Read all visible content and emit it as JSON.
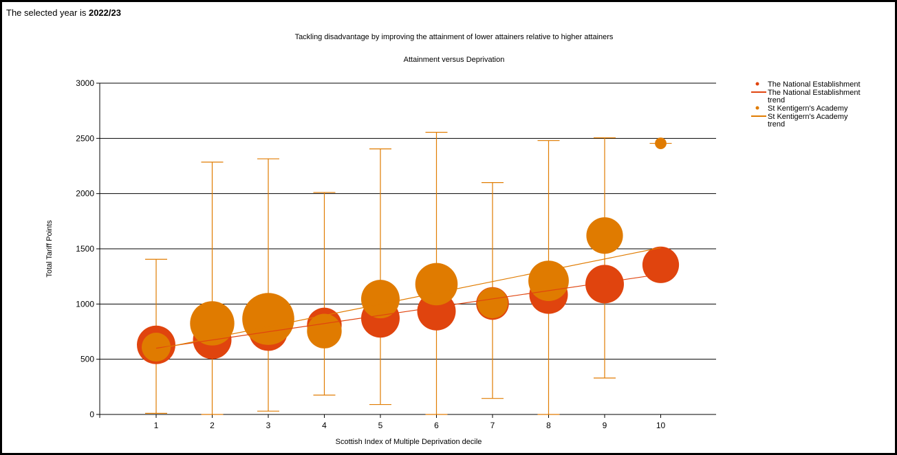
{
  "header": {
    "year_prefix": "The selected year is",
    "year_value": "2022/23"
  },
  "chart_data": {
    "type": "scatter",
    "title": "Tackling disadvantage by improving the attainment of lower attainers relative to higher attainers",
    "subtitle": "Attainment versus Deprivation",
    "xlabel": "Scottish Index of Multiple Deprivation decile",
    "ylabel": "Total Tariff Points",
    "categories": [
      "1",
      "2",
      "3",
      "4",
      "5",
      "6",
      "7",
      "8",
      "9",
      "10"
    ],
    "ylim": [
      0,
      3000
    ],
    "y_ticks": [
      "0",
      "500",
      "1000",
      "1500",
      "2000",
      "2500",
      "3000"
    ],
    "grid": true,
    "legend_position": "right",
    "legend": [
      {
        "label": "The National Establishment",
        "kind": "point",
        "color": "#e0440e"
      },
      {
        "label": "The National Establishment trend",
        "kind": "line",
        "color": "#e0440e"
      },
      {
        "label": "St Kentigern's Academy",
        "kind": "point",
        "color": "#e07b00"
      },
      {
        "label": "St Kentigern's Academy trend",
        "kind": "line",
        "color": "#e07b00"
      }
    ],
    "series": [
      {
        "name": "The National Establishment",
        "color": "#e0440e",
        "x": [
          1,
          2,
          3,
          4,
          5,
          6,
          7,
          8,
          9,
          10
        ],
        "y": [
          630,
          675,
          750,
          810,
          870,
          935,
          1005,
          1085,
          1180,
          1355
        ],
        "bubble_size": [
          1.0,
          1.0,
          1.0,
          0.9,
          1.0,
          1.0,
          0.85,
          1.0,
          1.0,
          0.95
        ]
      },
      {
        "name": "St Kentigern's Academy",
        "color": "#e07b00",
        "x": [
          1,
          2,
          3,
          4,
          5,
          6,
          7,
          8,
          9,
          10
        ],
        "y": [
          610,
          825,
          865,
          755,
          1045,
          1180,
          1010,
          1210,
          1620,
          2455
        ],
        "bubble_size": [
          0.75,
          1.15,
          1.35,
          0.9,
          1.0,
          1.1,
          0.8,
          1.05,
          0.95,
          0.3
        ],
        "error_low": [
          10,
          0,
          30,
          175,
          90,
          0,
          145,
          0,
          330,
          null
        ],
        "error_high": [
          1405,
          2285,
          2315,
          2010,
          2405,
          2555,
          2100,
          2480,
          2505,
          null
        ]
      }
    ],
    "trend_lines": [
      {
        "series": "The National Establishment trend",
        "color": "#e0440e",
        "x": [
          1,
          10
        ],
        "y": [
          600,
          1270
        ]
      },
      {
        "series": "St Kentigern's Academy trend",
        "color": "#e07b00",
        "x": [
          1,
          10
        ],
        "y": [
          590,
          1510
        ]
      }
    ]
  }
}
